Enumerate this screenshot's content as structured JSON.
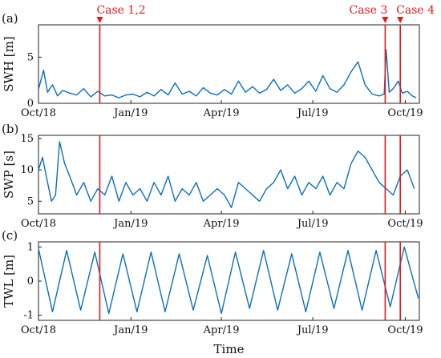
{
  "colors": {
    "series": "#0b6fbe",
    "event": "#e41a1c",
    "axis": "#222222"
  },
  "chart_data": [
    {
      "type": "line",
      "panel_label": "(a)",
      "ylabel": "SWH [m]",
      "xlabel": "",
      "x_range": [
        "2018-10-01",
        "2019-10-15"
      ],
      "ylim": [
        0,
        8.5
      ],
      "yticks": [
        0,
        5
      ],
      "xticks": [
        {
          "date": "2018-10-01",
          "label": "Oct/18"
        },
        {
          "date": "2019-01-01",
          "label": "Jan/19"
        },
        {
          "date": "2019-04-01",
          "label": "Apr/19"
        },
        {
          "date": "2019-07-01",
          "label": "Jul/19"
        },
        {
          "date": "2019-10-01",
          "label": "Oct/19"
        }
      ],
      "series": [
        {
          "x": [
            "2018-10-01",
            "2018-10-06",
            "2018-10-10",
            "2018-10-15",
            "2018-10-20",
            "2018-10-25",
            "2018-11-01",
            "2018-11-08",
            "2018-11-15",
            "2018-11-22",
            "2018-11-29",
            "2018-12-06",
            "2018-12-13",
            "2018-12-20",
            "2018-12-27",
            "2019-01-03",
            "2019-01-10",
            "2019-01-17",
            "2019-01-24",
            "2019-01-31",
            "2019-02-07",
            "2019-02-14",
            "2019-02-21",
            "2019-02-28",
            "2019-03-07",
            "2019-03-14",
            "2019-03-21",
            "2019-03-28",
            "2019-04-04",
            "2019-04-11",
            "2019-04-18",
            "2019-04-25",
            "2019-05-02",
            "2019-05-09",
            "2019-05-16",
            "2019-05-23",
            "2019-05-30",
            "2019-06-06",
            "2019-06-13",
            "2019-06-20",
            "2019-06-27",
            "2019-07-04",
            "2019-07-11",
            "2019-07-18",
            "2019-07-25",
            "2019-08-01",
            "2019-08-08",
            "2019-08-15",
            "2019-08-22",
            "2019-08-29",
            "2019-09-05",
            "2019-09-10",
            "2019-09-12",
            "2019-09-15",
            "2019-09-19",
            "2019-09-24",
            "2019-09-28",
            "2019-10-03",
            "2019-10-08",
            "2019-10-12"
          ],
          "values": [
            1.5,
            3.6,
            1.2,
            2.0,
            0.8,
            1.4,
            1.1,
            0.9,
            1.6,
            0.7,
            1.3,
            0.8,
            0.9,
            0.6,
            0.9,
            1.0,
            0.7,
            1.2,
            0.8,
            1.5,
            0.9,
            2.2,
            1.0,
            1.3,
            0.8,
            1.7,
            1.1,
            0.9,
            1.5,
            1.0,
            2.4,
            1.2,
            1.8,
            1.1,
            1.5,
            2.6,
            1.4,
            2.0,
            1.1,
            1.6,
            2.4,
            1.3,
            3.0,
            1.6,
            1.2,
            2.0,
            3.4,
            4.5,
            2.0,
            1.0,
            0.8,
            1.0,
            5.8,
            1.2,
            1.6,
            2.4,
            1.1,
            1.3,
            0.8,
            0.6
          ]
        }
      ]
    },
    {
      "type": "line",
      "panel_label": "(b)",
      "ylabel": "SWP [s]",
      "xlabel": "",
      "x_range": [
        "2018-10-01",
        "2019-10-15"
      ],
      "ylim": [
        3,
        15.5
      ],
      "yticks": [
        5,
        10,
        15
      ],
      "xticks": [
        {
          "date": "2018-10-01",
          "label": "Oct/18"
        },
        {
          "date": "2019-01-01",
          "label": "Jan/19"
        },
        {
          "date": "2019-04-01",
          "label": "Apr/19"
        },
        {
          "date": "2019-07-01",
          "label": "Jul/19"
        },
        {
          "date": "2019-10-01",
          "label": "Oct/19"
        }
      ],
      "series": [
        {
          "x": [
            "2018-10-01",
            "2018-10-05",
            "2018-10-10",
            "2018-10-14",
            "2018-10-18",
            "2018-10-22",
            "2018-10-27",
            "2018-11-01",
            "2018-11-08",
            "2018-11-15",
            "2018-11-22",
            "2018-11-29",
            "2018-12-06",
            "2018-12-13",
            "2018-12-20",
            "2018-12-27",
            "2019-01-03",
            "2019-01-10",
            "2019-01-17",
            "2019-01-24",
            "2019-01-31",
            "2019-02-07",
            "2019-02-14",
            "2019-02-21",
            "2019-02-28",
            "2019-03-07",
            "2019-03-14",
            "2019-03-21",
            "2019-03-28",
            "2019-04-04",
            "2019-04-11",
            "2019-04-18",
            "2019-04-25",
            "2019-05-02",
            "2019-05-09",
            "2019-05-16",
            "2019-05-23",
            "2019-05-30",
            "2019-06-06",
            "2019-06-13",
            "2019-06-20",
            "2019-06-27",
            "2019-07-04",
            "2019-07-11",
            "2019-07-18",
            "2019-07-25",
            "2019-08-01",
            "2019-08-08",
            "2019-08-15",
            "2019-08-22",
            "2019-08-29",
            "2019-09-05",
            "2019-09-12",
            "2019-09-19",
            "2019-09-26",
            "2019-10-03",
            "2019-10-10"
          ],
          "values": [
            10,
            12,
            8,
            5,
            6,
            14.5,
            11,
            9,
            6,
            8,
            5,
            7,
            6,
            9,
            5,
            8,
            6,
            7,
            5,
            8,
            6,
            9,
            5,
            7,
            6,
            8,
            5,
            6,
            7,
            6,
            4,
            8,
            7,
            6,
            5,
            7,
            8,
            10,
            7,
            9,
            6,
            8,
            7,
            9,
            6,
            8,
            7,
            11,
            13,
            12,
            10,
            8,
            7,
            6,
            9,
            10,
            7
          ]
        }
      ]
    },
    {
      "type": "line",
      "panel_label": "(c)",
      "ylabel": "TWL [m]",
      "xlabel": "Time",
      "x_range": [
        "2018-10-01",
        "2019-10-15"
      ],
      "ylim": [
        -1.15,
        1.15
      ],
      "yticks": [
        -1,
        0,
        1
      ],
      "xticks": [
        {
          "date": "2018-10-01",
          "label": "Oct/18"
        },
        {
          "date": "2019-01-01",
          "label": "Jan/19"
        },
        {
          "date": "2019-04-01",
          "label": "Apr/19"
        },
        {
          "date": "2019-07-01",
          "label": "Jul/19"
        },
        {
          "date": "2019-10-01",
          "label": "Oct/19"
        }
      ],
      "series": [
        {
          "x": [
            "2018-10-01",
            "2018-10-15",
            "2018-10-29",
            "2018-11-12",
            "2018-11-26",
            "2018-12-10",
            "2018-12-24",
            "2019-01-07",
            "2019-01-21",
            "2019-02-04",
            "2019-02-18",
            "2019-03-04",
            "2019-03-18",
            "2019-04-01",
            "2019-04-15",
            "2019-04-29",
            "2019-05-13",
            "2019-05-27",
            "2019-06-10",
            "2019-06-24",
            "2019-07-08",
            "2019-07-22",
            "2019-08-05",
            "2019-08-19",
            "2019-09-02",
            "2019-09-16",
            "2019-09-30",
            "2019-10-14"
          ],
          "values": [
            0.95,
            -0.9,
            0.9,
            -0.85,
            0.85,
            -0.95,
            0.8,
            -0.9,
            0.85,
            -0.9,
            0.8,
            -0.85,
            0.75,
            -0.95,
            0.85,
            -0.8,
            0.9,
            -0.85,
            0.8,
            -0.9,
            0.85,
            -0.8,
            0.9,
            -0.85,
            0.9,
            -0.75,
            1.0,
            -0.5
          ]
        }
      ]
    }
  ],
  "events": [
    {
      "date": "2018-12-01",
      "label": "Case 1,2"
    },
    {
      "date": "2019-09-11",
      "label": "Case 3"
    },
    {
      "date": "2019-09-26",
      "label": "Case 4"
    }
  ]
}
